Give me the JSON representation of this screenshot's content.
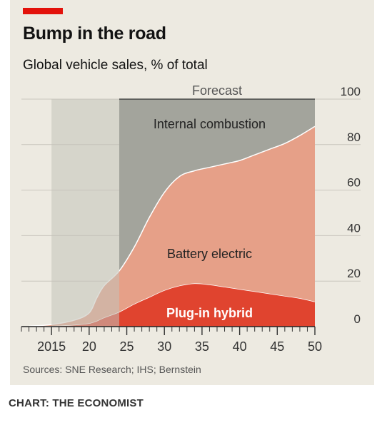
{
  "title": "Bump in the road",
  "subtitle": "Global vehicle sales, % of total",
  "source": "Sources: SNE Research; IHS; Bernstein",
  "credit": "CHART: THE ECONOMIST",
  "colors": {
    "internal_combustion": "#a3a49c",
    "historic_shade": "#c3c2ba",
    "battery_electric": "#e6a088",
    "plug_in_hybrid": "#e0442f",
    "accent": "#e3120b"
  },
  "chart_data": {
    "type": "area",
    "stacked": true,
    "x": [
      2012,
      2015,
      2018,
      2020,
      2021,
      2022,
      2024,
      2026,
      2028,
      2030,
      2032,
      2034,
      2036,
      2038,
      2040,
      2042,
      2044,
      2046,
      2048,
      2050
    ],
    "series": [
      {
        "name": "Plug-in hybrid",
        "color": "#e0442f",
        "values": [
          0.1,
          0.3,
          0.8,
          1.5,
          2.5,
          4,
          6.5,
          10,
          13,
          16,
          18,
          19,
          18.5,
          17.5,
          16.5,
          15.5,
          14.5,
          13.5,
          12.5,
          11
        ]
      },
      {
        "name": "Battery electric",
        "color": "#e6a088",
        "values": [
          0.1,
          0.6,
          2,
          4.5,
          10,
          14,
          18,
          25,
          35,
          43,
          48,
          49.5,
          51.5,
          54,
          56.5,
          60,
          63.5,
          67,
          71.5,
          77
        ]
      },
      {
        "name": "Internal combustion",
        "color": "#a3a49c",
        "values": [
          99.8,
          99.1,
          97.2,
          94,
          87.5,
          82,
          75.5,
          65,
          52,
          41,
          34,
          31.5,
          30,
          28.5,
          27,
          24.5,
          22,
          19.5,
          16,
          12
        ]
      }
    ],
    "forecast_region": {
      "label": "Forecast",
      "from": 2024,
      "to": 2050
    },
    "historic_region": {
      "from": 2015,
      "to": 2024
    },
    "xlim": [
      2011,
      2050
    ],
    "ylim": [
      0,
      100
    ],
    "yticks": [
      0,
      20,
      40,
      60,
      80,
      100
    ],
    "ytick_position": "right",
    "xticks": [
      2015,
      2020,
      2025,
      2030,
      2035,
      2040,
      2045,
      2050
    ],
    "xtick_labels": [
      "2015",
      "20",
      "25",
      "30",
      "35",
      "40",
      "45",
      "50"
    ],
    "grid": "horizontal",
    "annotations": [
      {
        "text": "Internal combustion",
        "series": "Internal combustion",
        "x": 2036,
        "y": 89
      },
      {
        "text": "Battery electric",
        "series": "Battery electric",
        "x": 2036,
        "y": 32
      },
      {
        "text": "Plug-in hybrid",
        "series": "Plug-in hybrid",
        "x": 2036,
        "y": 6
      }
    ]
  }
}
